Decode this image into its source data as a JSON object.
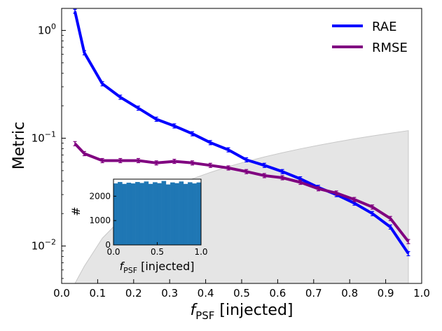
{
  "chart_data": {
    "type": "line",
    "ylabel": "Metric",
    "xlabel": {
      "main": "f",
      "sub": "PSF",
      "tail": " [injected]"
    },
    "xlim": [
      0.0,
      1.0
    ],
    "ylim": [
      0.0045,
      1.6
    ],
    "yscale": "log",
    "xticks": [
      "0.0",
      "0.1",
      "0.2",
      "0.3",
      "0.4",
      "0.5",
      "0.6",
      "0.7",
      "0.8",
      "0.9",
      "1.0"
    ],
    "yticks": [
      {
        "value": 1,
        "base": "10",
        "exp": "0"
      },
      {
        "value": 0.1,
        "base": "10",
        "exp": "−1"
      },
      {
        "value": 0.01,
        "base": "10",
        "exp": "−2"
      }
    ],
    "legend": {
      "placement": "top-right"
    },
    "series": [
      {
        "name": "RAE",
        "color": "#0000ff",
        "x": [
          0.037,
          0.063,
          0.113,
          0.163,
          0.213,
          0.263,
          0.313,
          0.363,
          0.413,
          0.463,
          0.513,
          0.563,
          0.613,
          0.663,
          0.713,
          0.763,
          0.813,
          0.863,
          0.913,
          0.963
        ],
        "y": [
          1.5,
          0.62,
          0.32,
          0.24,
          0.19,
          0.15,
          0.13,
          0.11,
          0.091,
          0.078,
          0.063,
          0.056,
          0.049,
          0.042,
          0.035,
          0.03,
          0.025,
          0.02,
          0.015,
          0.0085
        ]
      },
      {
        "name": "RMSE",
        "color": "#800080",
        "x": [
          0.037,
          0.063,
          0.113,
          0.163,
          0.213,
          0.263,
          0.313,
          0.363,
          0.413,
          0.463,
          0.513,
          0.563,
          0.613,
          0.663,
          0.713,
          0.763,
          0.813,
          0.863,
          0.913,
          0.963
        ],
        "y": [
          0.089,
          0.072,
          0.062,
          0.062,
          0.062,
          0.059,
          0.061,
          0.059,
          0.056,
          0.053,
          0.049,
          0.045,
          0.043,
          0.039,
          0.034,
          0.031,
          0.027,
          0.023,
          0.018,
          0.011
        ]
      }
    ],
    "shaded_region": {
      "color": "#d3d3d3",
      "x": [
        0.037,
        0.063,
        0.113,
        0.163,
        0.213,
        0.263,
        0.313,
        0.363,
        0.413,
        0.463,
        0.513,
        0.563,
        0.613,
        0.663,
        0.713,
        0.763,
        0.813,
        0.863,
        0.913,
        0.963
      ],
      "y": [
        0.0045,
        0.0065,
        0.0118,
        0.0175,
        0.0235,
        0.0296,
        0.0358,
        0.042,
        0.0482,
        0.0545,
        0.0608,
        0.0671,
        0.0734,
        0.0797,
        0.086,
        0.0923,
        0.0987,
        0.105,
        0.1113,
        0.1176
      ]
    },
    "inset": {
      "type": "histogram",
      "color": "#1f77b4",
      "ylabel": "#",
      "xlabel": {
        "main": "f",
        "sub": "PSF",
        "tail": " [injected]"
      },
      "xlim": [
        0.0,
        1.0
      ],
      "ylim": [
        0,
        2700
      ],
      "xticks": [
        "0.0",
        "0.5",
        "1.0"
      ],
      "yticks": [
        0,
        1000,
        2000
      ],
      "bin_edges": [
        0,
        0.05,
        0.1,
        0.15,
        0.2,
        0.25,
        0.3,
        0.35,
        0.4,
        0.45,
        0.5,
        0.55,
        0.6,
        0.65,
        0.7,
        0.75,
        0.8,
        0.85,
        0.9,
        0.95,
        1.0
      ],
      "counts": [
        2520,
        2580,
        2500,
        2550,
        2520,
        2580,
        2540,
        2600,
        2500,
        2570,
        2530,
        2620,
        2480,
        2560,
        2530,
        2600,
        2500,
        2570,
        2520,
        2560
      ]
    }
  }
}
